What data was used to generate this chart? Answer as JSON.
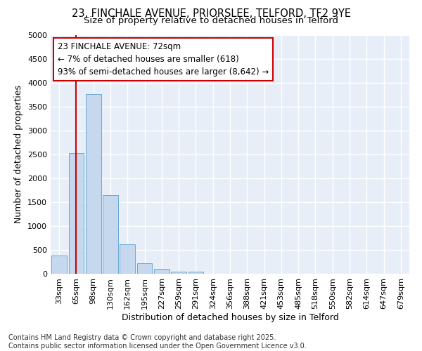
{
  "title_line1": "23, FINCHALE AVENUE, PRIORSLEE, TELFORD, TF2 9YE",
  "title_line2": "Size of property relative to detached houses in Telford",
  "xlabel": "Distribution of detached houses by size in Telford",
  "ylabel": "Number of detached properties",
  "categories": [
    "33sqm",
    "65sqm",
    "98sqm",
    "130sqm",
    "162sqm",
    "195sqm",
    "227sqm",
    "259sqm",
    "291sqm",
    "324sqm",
    "356sqm",
    "388sqm",
    "421sqm",
    "453sqm",
    "485sqm",
    "518sqm",
    "550sqm",
    "582sqm",
    "614sqm",
    "647sqm",
    "679sqm"
  ],
  "values": [
    380,
    2530,
    3760,
    1650,
    620,
    220,
    100,
    45,
    50,
    0,
    0,
    0,
    0,
    0,
    0,
    0,
    0,
    0,
    0,
    0,
    0
  ],
  "ylim": [
    0,
    5000
  ],
  "yticks": [
    0,
    500,
    1000,
    1500,
    2000,
    2500,
    3000,
    3500,
    4000,
    4500,
    5000
  ],
  "bar_color": "#c5d8ee",
  "bar_edge_color": "#6aaad4",
  "vline_x": 1.0,
  "vline_color": "#cc0000",
  "annotation_text": "23 FINCHALE AVENUE: 72sqm\n← 7% of detached houses are smaller (618)\n93% of semi-detached houses are larger (8,642) →",
  "annotation_box_color": "#ffffff",
  "annotation_edge_color": "#cc0000",
  "fig_bg_color": "#ffffff",
  "plot_bg_color": "#e8eef8",
  "footer_text": "Contains HM Land Registry data © Crown copyright and database right 2025.\nContains public sector information licensed under the Open Government Licence v3.0.",
  "title_fontsize": 10.5,
  "subtitle_fontsize": 9.5,
  "axis_label_fontsize": 9,
  "tick_fontsize": 8,
  "annotation_fontsize": 8.5,
  "footer_fontsize": 7
}
